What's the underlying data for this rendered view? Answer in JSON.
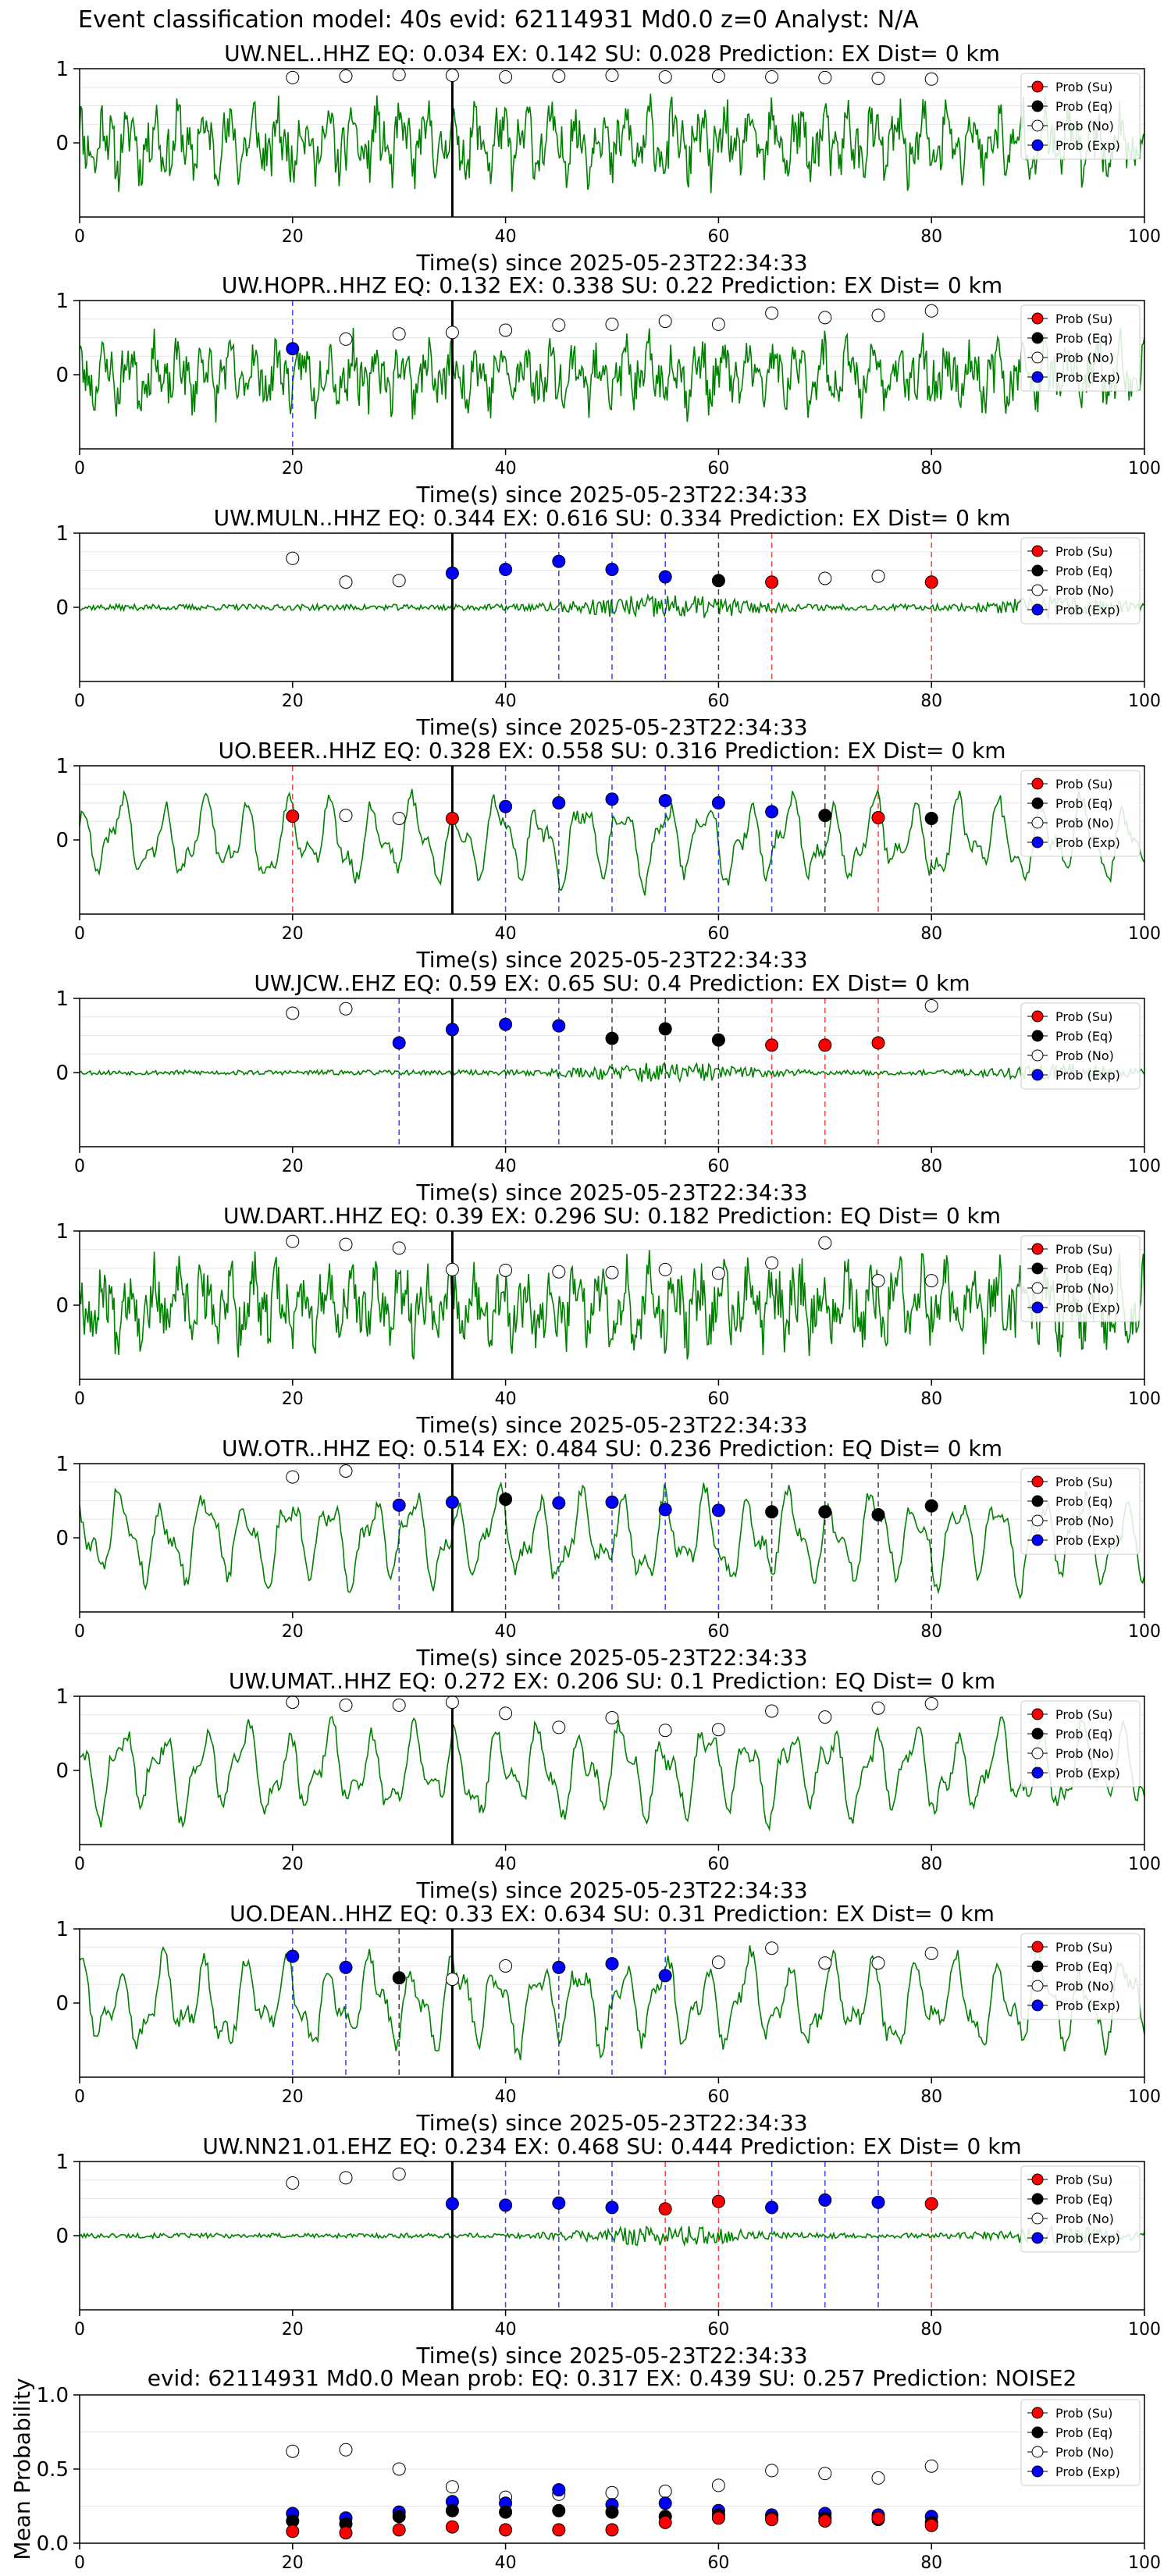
{
  "figure": {
    "suptitle": "Event classification model: 40s evid: 62114931 Md0.0 z=0 Analyst: N/A",
    "xlabel": "Time(s) since 2025-05-23T22:34:33",
    "colors": {
      "waveform": "#008000",
      "su": "#ff0000",
      "eq": "#000000",
      "no": "#ffffff",
      "exp": "#0000ff",
      "su_line": "#ff0000",
      "eq_line": "#000000",
      "exp_line": "#0000ff",
      "pick_line": "#000000"
    },
    "legend": {
      "position": "upper-right",
      "entries": [
        {
          "key": "su",
          "label": "Prob (Su)"
        },
        {
          "key": "eq",
          "label": "Prob (Eq)"
        },
        {
          "key": "no",
          "label": "Prob (No)"
        },
        {
          "key": "exp",
          "label": "Prob (Exp)"
        }
      ]
    }
  },
  "chart_data": [
    {
      "type": "scatter",
      "title": "UW.NEL..HHZ   EQ: 0.034  EX: 0.142  SU: 0.028   Prediction: EX    Dist= 0 km",
      "xlim": [
        0,
        100
      ],
      "ylim": [
        -1,
        1
      ],
      "xticks": [
        0,
        20,
        40,
        60,
        80,
        100
      ],
      "yticks": [
        0,
        1
      ],
      "pick_time": 35,
      "waveform_style": "dense",
      "waveform_amplitude": 0.55,
      "seed": 11,
      "x": [
        20,
        25,
        30,
        35,
        40,
        45,
        50,
        55,
        60,
        65,
        70,
        75,
        80
      ],
      "classes": [
        "no",
        "no",
        "no",
        "no",
        "no",
        "no",
        "no",
        "no",
        "no",
        "no",
        "no",
        "no",
        "no"
      ],
      "probs": [
        0.88,
        0.9,
        0.92,
        0.91,
        0.89,
        0.9,
        0.91,
        0.89,
        0.9,
        0.89,
        0.88,
        0.87,
        0.86
      ],
      "vlines": []
    },
    {
      "type": "scatter",
      "title": "UW.HOPR..HHZ   EQ: 0.132  EX: 0.338  SU: 0.22   Prediction: EX    Dist= 0 km",
      "xlim": [
        0,
        100
      ],
      "ylim": [
        -1,
        1
      ],
      "xticks": [
        0,
        20,
        40,
        60,
        80,
        100
      ],
      "yticks": [
        0,
        1
      ],
      "pick_time": 35,
      "waveform_style": "dense",
      "waveform_amplitude": 0.5,
      "seed": 23,
      "x": [
        20,
        25,
        30,
        35,
        40,
        45,
        50,
        55,
        60,
        65,
        70,
        75,
        80
      ],
      "classes": [
        "exp",
        "no",
        "no",
        "no",
        "no",
        "no",
        "no",
        "no",
        "no",
        "no",
        "no",
        "no",
        "no"
      ],
      "probs": [
        0.35,
        0.48,
        0.55,
        0.57,
        0.6,
        0.67,
        0.68,
        0.72,
        0.68,
        0.83,
        0.77,
        0.8,
        0.86
      ],
      "vlines": [
        {
          "x": 20,
          "cls": "exp"
        }
      ]
    },
    {
      "type": "scatter",
      "title": "UW.MULN..HHZ   EQ: 0.344  EX: 0.616  SU: 0.334   Prediction: EX    Dist= 0 km",
      "xlim": [
        0,
        100
      ],
      "ylim": [
        -1,
        1
      ],
      "xticks": [
        0,
        20,
        40,
        60,
        80,
        100
      ],
      "yticks": [
        0,
        1
      ],
      "pick_time": 35,
      "waveform_style": "quiet",
      "waveform_amplitude": 0.1,
      "seed": 37,
      "x": [
        20,
        25,
        30,
        35,
        40,
        45,
        50,
        55,
        60,
        65,
        70,
        75,
        80
      ],
      "classes": [
        "no",
        "no",
        "no",
        "exp",
        "exp",
        "exp",
        "exp",
        "exp",
        "eq",
        "su",
        "no",
        "no",
        "su"
      ],
      "probs": [
        0.66,
        0.34,
        0.36,
        0.46,
        0.51,
        0.62,
        0.51,
        0.41,
        0.36,
        0.34,
        0.39,
        0.42,
        0.34
      ],
      "vlines": [
        {
          "x": 40,
          "cls": "exp"
        },
        {
          "x": 45,
          "cls": "exp"
        },
        {
          "x": 50,
          "cls": "exp"
        },
        {
          "x": 55,
          "cls": "exp"
        },
        {
          "x": 60,
          "cls": "eq"
        },
        {
          "x": 65,
          "cls": "su"
        },
        {
          "x": 80,
          "cls": "su"
        }
      ]
    },
    {
      "type": "scatter",
      "title": "UO.BEER..HHZ   EQ: 0.328  EX: 0.558  SU: 0.316   Prediction: EX    Dist= 0 km",
      "xlim": [
        0,
        100
      ],
      "ylim": [
        -1,
        1
      ],
      "xticks": [
        0,
        20,
        40,
        60,
        80,
        100
      ],
      "yticks": [
        0,
        1
      ],
      "pick_time": 35,
      "waveform_style": "smooth",
      "waveform_amplitude": 0.55,
      "seed": 41,
      "x": [
        20,
        25,
        30,
        35,
        40,
        45,
        50,
        55,
        60,
        65,
        70,
        75,
        80
      ],
      "classes": [
        "su",
        "no",
        "no",
        "su",
        "exp",
        "exp",
        "exp",
        "exp",
        "exp",
        "exp",
        "eq",
        "su",
        "eq"
      ],
      "probs": [
        0.32,
        0.33,
        0.29,
        0.29,
        0.45,
        0.5,
        0.55,
        0.53,
        0.5,
        0.38,
        0.33,
        0.3,
        0.29
      ],
      "vlines": [
        {
          "x": 20,
          "cls": "su"
        },
        {
          "x": 40,
          "cls": "exp"
        },
        {
          "x": 45,
          "cls": "exp"
        },
        {
          "x": 50,
          "cls": "exp"
        },
        {
          "x": 55,
          "cls": "exp"
        },
        {
          "x": 60,
          "cls": "exp"
        },
        {
          "x": 65,
          "cls": "exp"
        },
        {
          "x": 70,
          "cls": "eq"
        },
        {
          "x": 75,
          "cls": "su"
        },
        {
          "x": 80,
          "cls": "eq"
        }
      ]
    },
    {
      "type": "scatter",
      "title": "UW.JCW..EHZ   EQ: 0.59  EX: 0.65  SU: 0.4   Prediction: EX    Dist= 0 km",
      "xlim": [
        0,
        100
      ],
      "ylim": [
        -1,
        1
      ],
      "xticks": [
        0,
        20,
        40,
        60,
        80,
        100
      ],
      "yticks": [
        0,
        1
      ],
      "pick_time": 35,
      "waveform_style": "quiet",
      "waveform_amplitude": 0.08,
      "seed": 53,
      "x": [
        20,
        25,
        30,
        35,
        40,
        45,
        50,
        55,
        60,
        65,
        70,
        75,
        80
      ],
      "classes": [
        "no",
        "no",
        "exp",
        "exp",
        "exp",
        "exp",
        "eq",
        "eq",
        "eq",
        "su",
        "su",
        "su",
        "no"
      ],
      "probs": [
        0.8,
        0.86,
        0.4,
        0.58,
        0.65,
        0.63,
        0.46,
        0.59,
        0.44,
        0.37,
        0.37,
        0.4,
        0.9
      ],
      "vlines": [
        {
          "x": 30,
          "cls": "exp"
        },
        {
          "x": 40,
          "cls": "exp"
        },
        {
          "x": 45,
          "cls": "exp"
        },
        {
          "x": 50,
          "cls": "eq"
        },
        {
          "x": 55,
          "cls": "eq"
        },
        {
          "x": 60,
          "cls": "eq"
        },
        {
          "x": 65,
          "cls": "su"
        },
        {
          "x": 70,
          "cls": "su"
        },
        {
          "x": 75,
          "cls": "su"
        }
      ]
    },
    {
      "type": "scatter",
      "title": "UW.DART..HHZ   EQ: 0.39  EX: 0.296  SU: 0.182   Prediction: EQ    Dist= 0 km",
      "xlim": [
        0,
        100
      ],
      "ylim": [
        -1,
        1
      ],
      "xticks": [
        0,
        20,
        40,
        60,
        80,
        100
      ],
      "yticks": [
        0,
        1
      ],
      "pick_time": 35,
      "waveform_style": "dense",
      "waveform_amplitude": 0.6,
      "seed": 67,
      "x": [
        20,
        25,
        30,
        35,
        40,
        45,
        50,
        55,
        60,
        65,
        70,
        75,
        80
      ],
      "classes": [
        "no",
        "no",
        "no",
        "no",
        "no",
        "no",
        "no",
        "no",
        "no",
        "no",
        "no",
        "no",
        "no"
      ],
      "probs": [
        0.86,
        0.82,
        0.77,
        0.48,
        0.47,
        0.45,
        0.44,
        0.48,
        0.43,
        0.57,
        0.84,
        0.33,
        0.33
      ],
      "vlines": []
    },
    {
      "type": "scatter",
      "title": "UW.OTR..HHZ   EQ: 0.514  EX: 0.484  SU: 0.236   Prediction: EQ    Dist= 0 km",
      "xlim": [
        0,
        100
      ],
      "ylim": [
        -1,
        1
      ],
      "xticks": [
        0,
        20,
        40,
        60,
        80,
        100
      ],
      "yticks": [
        0,
        1
      ],
      "pick_time": 35,
      "waveform_style": "smooth",
      "waveform_amplitude": 0.6,
      "seed": 79,
      "x": [
        20,
        25,
        30,
        35,
        40,
        45,
        50,
        55,
        60,
        65,
        70,
        75,
        80
      ],
      "classes": [
        "no",
        "no",
        "exp",
        "exp",
        "eq",
        "exp",
        "exp",
        "exp",
        "exp",
        "eq",
        "eq",
        "eq",
        "eq"
      ],
      "probs": [
        0.82,
        0.9,
        0.44,
        0.48,
        0.52,
        0.47,
        0.48,
        0.38,
        0.37,
        0.35,
        0.35,
        0.31,
        0.43
      ],
      "vlines": [
        {
          "x": 30,
          "cls": "exp"
        },
        {
          "x": 40,
          "cls": "eq"
        },
        {
          "x": 45,
          "cls": "exp"
        },
        {
          "x": 50,
          "cls": "exp"
        },
        {
          "x": 55,
          "cls": "exp"
        },
        {
          "x": 60,
          "cls": "exp"
        },
        {
          "x": 65,
          "cls": "eq"
        },
        {
          "x": 70,
          "cls": "eq"
        },
        {
          "x": 75,
          "cls": "eq"
        },
        {
          "x": 80,
          "cls": "eq"
        }
      ]
    },
    {
      "type": "scatter",
      "title": "UW.UMAT..HHZ   EQ: 0.272  EX: 0.206  SU: 0.1   Prediction: EQ    Dist= 0 km",
      "xlim": [
        0,
        100
      ],
      "ylim": [
        -1,
        1
      ],
      "xticks": [
        0,
        20,
        40,
        60,
        80,
        100
      ],
      "yticks": [
        0,
        1
      ],
      "pick_time": 35,
      "waveform_style": "smooth",
      "waveform_amplitude": 0.6,
      "seed": 83,
      "x": [
        20,
        25,
        30,
        35,
        40,
        45,
        50,
        55,
        60,
        65,
        70,
        75,
        80
      ],
      "classes": [
        "no",
        "no",
        "no",
        "no",
        "no",
        "no",
        "no",
        "no",
        "no",
        "no",
        "no",
        "no",
        "no"
      ],
      "probs": [
        0.92,
        0.88,
        0.88,
        0.92,
        0.77,
        0.58,
        0.71,
        0.54,
        0.55,
        0.8,
        0.72,
        0.84,
        0.9
      ],
      "vlines": []
    },
    {
      "type": "scatter",
      "title": "UO.DEAN..HHZ   EQ: 0.33  EX: 0.634  SU: 0.31   Prediction: EX    Dist= 0 km",
      "xlim": [
        0,
        100
      ],
      "ylim": [
        -1,
        1
      ],
      "xticks": [
        0,
        20,
        40,
        60,
        80,
        100
      ],
      "yticks": [
        0,
        1
      ],
      "pick_time": 35,
      "waveform_style": "smooth",
      "waveform_amplitude": 0.6,
      "seed": 97,
      "x": [
        20,
        25,
        30,
        35,
        40,
        45,
        50,
        55,
        60,
        65,
        70,
        75,
        80
      ],
      "classes": [
        "exp",
        "exp",
        "eq",
        "no",
        "no",
        "exp",
        "exp",
        "exp",
        "no",
        "no",
        "no",
        "no",
        "no"
      ],
      "probs": [
        0.63,
        0.48,
        0.34,
        0.32,
        0.5,
        0.48,
        0.53,
        0.37,
        0.55,
        0.74,
        0.54,
        0.54,
        0.67
      ],
      "vlines": [
        {
          "x": 20,
          "cls": "exp"
        },
        {
          "x": 25,
          "cls": "exp"
        },
        {
          "x": 30,
          "cls": "eq"
        },
        {
          "x": 45,
          "cls": "exp"
        },
        {
          "x": 50,
          "cls": "exp"
        },
        {
          "x": 55,
          "cls": "exp"
        }
      ]
    },
    {
      "type": "scatter",
      "title": "UW.NN21.01.EHZ   EQ: 0.234  EX: 0.468  SU: 0.444   Prediction: EX    Dist= 0 km",
      "xlim": [
        0,
        100
      ],
      "ylim": [
        -1,
        1
      ],
      "xticks": [
        0,
        20,
        40,
        60,
        80,
        100
      ],
      "yticks": [
        0,
        1
      ],
      "pick_time": 35,
      "waveform_style": "quiet",
      "waveform_amplitude": 0.08,
      "seed": 101,
      "x": [
        20,
        25,
        30,
        35,
        40,
        45,
        50,
        55,
        60,
        65,
        70,
        75,
        80
      ],
      "classes": [
        "no",
        "no",
        "no",
        "exp",
        "exp",
        "exp",
        "exp",
        "su",
        "su",
        "exp",
        "exp",
        "exp",
        "su"
      ],
      "probs": [
        0.71,
        0.78,
        0.83,
        0.43,
        0.41,
        0.44,
        0.38,
        0.36,
        0.46,
        0.38,
        0.48,
        0.45,
        0.43
      ],
      "vlines": [
        {
          "x": 40,
          "cls": "exp"
        },
        {
          "x": 45,
          "cls": "exp"
        },
        {
          "x": 50,
          "cls": "exp"
        },
        {
          "x": 55,
          "cls": "su"
        },
        {
          "x": 60,
          "cls": "su"
        },
        {
          "x": 65,
          "cls": "exp"
        },
        {
          "x": 70,
          "cls": "exp"
        },
        {
          "x": 75,
          "cls": "exp"
        },
        {
          "x": 80,
          "cls": "su"
        }
      ]
    },
    {
      "type": "scatter",
      "title": "evid: 62114931  Md0.0   Mean prob:   EQ: 0.317  EX: 0.439  SU: 0.257   Prediction: NOISE2",
      "ylabel": "Mean Probability",
      "xlim": [
        0,
        100
      ],
      "ylim": [
        0,
        1
      ],
      "xticks": [
        0,
        20,
        40,
        60,
        80,
        100
      ],
      "yticks": [
        0.0,
        0.5,
        1.0
      ],
      "ytick_labels": [
        "0.0",
        "0.5",
        "1.0"
      ],
      "x": [
        20,
        25,
        30,
        35,
        40,
        45,
        50,
        55,
        60,
        65,
        70,
        75,
        80
      ],
      "series": [
        {
          "key": "no",
          "name": "Prob (No)",
          "values": [
            0.62,
            0.63,
            0.5,
            0.38,
            0.31,
            0.33,
            0.34,
            0.35,
            0.39,
            0.49,
            0.47,
            0.44,
            0.52
          ]
        },
        {
          "key": "exp",
          "name": "Prob (Exp)",
          "values": [
            0.2,
            0.17,
            0.21,
            0.28,
            0.27,
            0.36,
            0.26,
            0.27,
            0.22,
            0.19,
            0.2,
            0.19,
            0.18
          ]
        },
        {
          "key": "eq",
          "name": "Prob (Eq)",
          "values": [
            0.15,
            0.13,
            0.18,
            0.22,
            0.21,
            0.22,
            0.21,
            0.18,
            0.19,
            0.17,
            0.17,
            0.16,
            0.14
          ]
        },
        {
          "key": "su",
          "name": "Prob (Su)",
          "values": [
            0.08,
            0.07,
            0.09,
            0.11,
            0.09,
            0.09,
            0.09,
            0.14,
            0.17,
            0.16,
            0.15,
            0.17,
            0.12
          ]
        }
      ]
    }
  ]
}
